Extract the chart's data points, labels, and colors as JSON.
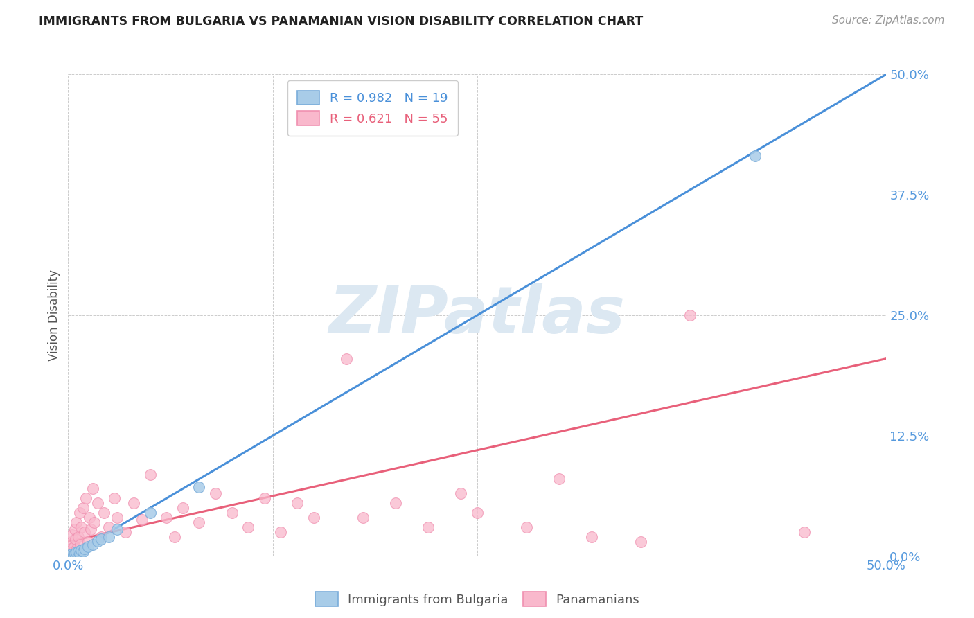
{
  "title": "IMMIGRANTS FROM BULGARIA VS PANAMANIAN VISION DISABILITY CORRELATION CHART",
  "source": "Source: ZipAtlas.com",
  "ylabel": "Vision Disability",
  "ytick_values": [
    0.0,
    12.5,
    25.0,
    37.5,
    50.0
  ],
  "grid_values": [
    0.0,
    12.5,
    25.0,
    37.5,
    50.0
  ],
  "xlim": [
    0.0,
    50.0
  ],
  "ylim": [
    0.0,
    50.0
  ],
  "legend_r1": "R = 0.982",
  "legend_n1": "N = 19",
  "legend_r2": "R = 0.621",
  "legend_n2": "N = 55",
  "blue_marker_color": "#a8cce8",
  "blue_marker_edge": "#7aadda",
  "pink_marker_color": "#f9b8cc",
  "pink_marker_edge": "#f090b0",
  "blue_line_color": "#4a90d9",
  "pink_line_color": "#e8607a",
  "tick_color": "#5599dd",
  "watermark": "ZIPatlas",
  "watermark_color": "#dce8f2",
  "background_color": "#ffffff",
  "blue_scatter": [
    [
      0.1,
      0.1
    ],
    [
      0.2,
      0.2
    ],
    [
      0.3,
      0.1
    ],
    [
      0.4,
      0.3
    ],
    [
      0.5,
      0.4
    ],
    [
      0.6,
      0.5
    ],
    [
      0.7,
      0.3
    ],
    [
      0.8,
      0.6
    ],
    [
      0.9,
      0.5
    ],
    [
      1.0,
      0.8
    ],
    [
      1.2,
      1.0
    ],
    [
      1.5,
      1.2
    ],
    [
      1.8,
      1.6
    ],
    [
      2.0,
      1.8
    ],
    [
      2.5,
      2.0
    ],
    [
      3.0,
      2.8
    ],
    [
      5.0,
      4.5
    ],
    [
      8.0,
      7.2
    ],
    [
      42.0,
      41.5
    ]
  ],
  "pink_scatter": [
    [
      0.1,
      0.3
    ],
    [
      0.15,
      0.8
    ],
    [
      0.2,
      1.5
    ],
    [
      0.25,
      2.2
    ],
    [
      0.3,
      0.5
    ],
    [
      0.35,
      1.0
    ],
    [
      0.4,
      2.8
    ],
    [
      0.45,
      1.8
    ],
    [
      0.5,
      3.5
    ],
    [
      0.55,
      0.8
    ],
    [
      0.6,
      2.0
    ],
    [
      0.7,
      4.5
    ],
    [
      0.75,
      1.2
    ],
    [
      0.8,
      3.0
    ],
    [
      0.9,
      5.0
    ],
    [
      1.0,
      2.5
    ],
    [
      1.1,
      6.0
    ],
    [
      1.2,
      1.5
    ],
    [
      1.3,
      4.0
    ],
    [
      1.4,
      2.8
    ],
    [
      1.5,
      7.0
    ],
    [
      1.6,
      3.5
    ],
    [
      1.8,
      5.5
    ],
    [
      2.0,
      2.0
    ],
    [
      2.2,
      4.5
    ],
    [
      2.5,
      3.0
    ],
    [
      2.8,
      6.0
    ],
    [
      3.0,
      4.0
    ],
    [
      3.5,
      2.5
    ],
    [
      4.0,
      5.5
    ],
    [
      4.5,
      3.8
    ],
    [
      5.0,
      8.5
    ],
    [
      6.0,
      4.0
    ],
    [
      6.5,
      2.0
    ],
    [
      7.0,
      5.0
    ],
    [
      8.0,
      3.5
    ],
    [
      9.0,
      6.5
    ],
    [
      10.0,
      4.5
    ],
    [
      11.0,
      3.0
    ],
    [
      12.0,
      6.0
    ],
    [
      13.0,
      2.5
    ],
    [
      14.0,
      5.5
    ],
    [
      15.0,
      4.0
    ],
    [
      17.0,
      20.5
    ],
    [
      18.0,
      4.0
    ],
    [
      20.0,
      5.5
    ],
    [
      22.0,
      3.0
    ],
    [
      24.0,
      6.5
    ],
    [
      25.0,
      4.5
    ],
    [
      28.0,
      3.0
    ],
    [
      30.0,
      8.0
    ],
    [
      32.0,
      2.0
    ],
    [
      35.0,
      1.5
    ],
    [
      38.0,
      25.0
    ],
    [
      45.0,
      2.5
    ]
  ],
  "blue_line_x": [
    0.0,
    50.0
  ],
  "blue_line_y": [
    0.0,
    50.0
  ],
  "pink_line_x": [
    0.0,
    50.0
  ],
  "pink_line_y": [
    1.5,
    20.5
  ]
}
